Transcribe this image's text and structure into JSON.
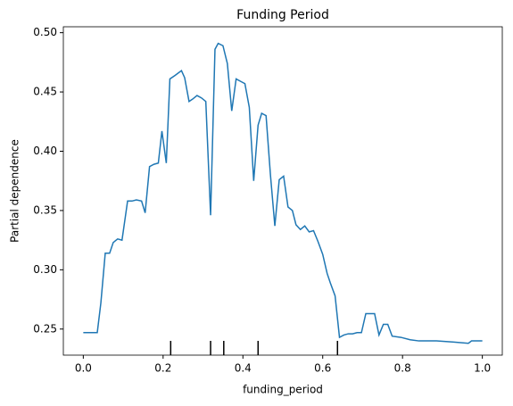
{
  "chart_data": {
    "type": "line",
    "title": "Funding Period",
    "x_label": "funding_period",
    "y_label": "Partial dependence",
    "x": [
      0,
      0.035,
      0.044,
      0.055,
      0.066,
      0.075,
      0.086,
      0.097,
      0.111,
      0.122,
      0.133,
      0.146,
      0.155,
      0.166,
      0.177,
      0.188,
      0.197,
      0.208,
      0.217,
      0.23,
      0.246,
      0.254,
      0.265,
      0.274,
      0.285,
      0.296,
      0.307,
      0.319,
      0.33,
      0.338,
      0.35,
      0.361,
      0.372,
      0.383,
      0.394,
      0.405,
      0.416,
      0.427,
      0.438,
      0.447,
      0.458,
      0.469,
      0.48,
      0.491,
      0.502,
      0.513,
      0.524,
      0.533,
      0.544,
      0.555,
      0.566,
      0.577,
      0.588,
      0.6,
      0.611,
      0.619,
      0.631,
      0.642,
      0.653,
      0.664,
      0.675,
      0.686,
      0.697,
      0.708,
      0.719,
      0.73,
      0.741,
      0.752,
      0.763,
      0.774,
      0.796,
      0.819,
      0.841,
      0.885,
      0.929,
      0.965,
      0.973,
      1.0
    ],
    "series": [
      {
        "name": "partial_dependence",
        "color": "#1f77b4",
        "values": [
          0.247,
          0.247,
          0.272,
          0.314,
          0.314,
          0.323,
          0.326,
          0.325,
          0.358,
          0.358,
          0.359,
          0.358,
          0.348,
          0.387,
          0.389,
          0.39,
          0.417,
          0.39,
          0.461,
          0.464,
          0.468,
          0.462,
          0.442,
          0.444,
          0.447,
          0.445,
          0.442,
          0.346,
          0.486,
          0.491,
          0.489,
          0.474,
          0.434,
          0.461,
          0.459,
          0.457,
          0.437,
          0.375,
          0.422,
          0.432,
          0.43,
          0.38,
          0.337,
          0.376,
          0.379,
          0.353,
          0.35,
          0.338,
          0.334,
          0.337,
          0.332,
          0.333,
          0.324,
          0.313,
          0.297,
          0.289,
          0.278,
          0.243,
          0.245,
          0.246,
          0.246,
          0.247,
          0.247,
          0.263,
          0.263,
          0.263,
          0.245,
          0.254,
          0.254,
          0.244,
          0.243,
          0.241,
          0.24,
          0.24,
          0.239,
          0.238,
          0.24,
          0.24
        ]
      }
    ],
    "deciles": [
      0.219,
      0.319,
      0.352,
      0.438,
      0.637
    ],
    "xlim": [
      -0.05,
      1.05
    ],
    "ylim": [
      0.228,
      0.505
    ],
    "xticks": [
      {
        "value": 0,
        "label": "0.0"
      },
      0.2,
      0.4,
      0.6,
      0.8,
      {
        "value": 1,
        "label": "1.0"
      }
    ],
    "yticks": [
      0.25,
      {
        "value": 0.3,
        "label": "0.30"
      },
      0.35,
      {
        "value": 0.4,
        "label": "0.40"
      },
      0.45,
      {
        "value": 0.5,
        "label": "0.50"
      }
    ]
  }
}
